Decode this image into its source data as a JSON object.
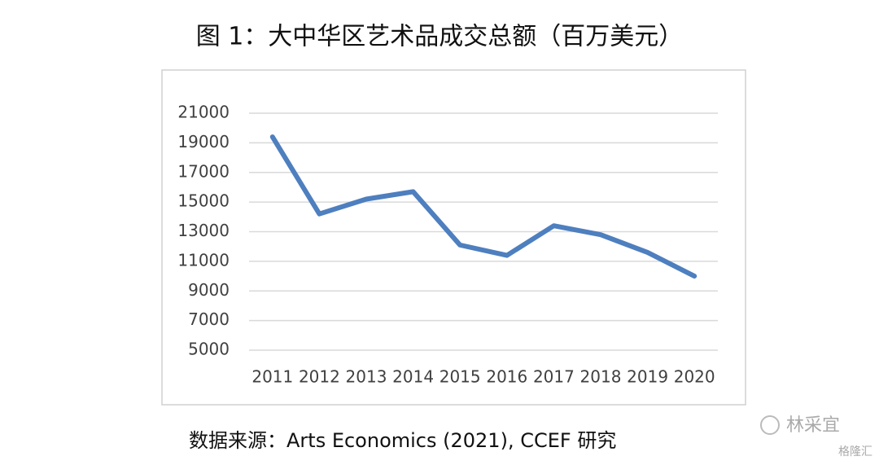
{
  "chart_data": {
    "type": "line",
    "title": "图 1：大中华区艺术品成交总额（百万美元）",
    "categories": [
      "2011",
      "2012",
      "2013",
      "2014",
      "2015",
      "2016",
      "2017",
      "2018",
      "2019",
      "2020"
    ],
    "values": [
      19400,
      14200,
      15200,
      15700,
      12100,
      11400,
      13400,
      12800,
      11600,
      10000
    ],
    "color": "#4e7fbf",
    "ylim": [
      5000,
      21000
    ],
    "yticks": [
      5000,
      7000,
      9000,
      11000,
      13000,
      15000,
      17000,
      19000,
      21000
    ],
    "grid": true,
    "source": "数据来源：Arts Economics (2021), CCEF 研究"
  },
  "watermark": {
    "author": "林采宜",
    "platform": "格隆汇"
  }
}
